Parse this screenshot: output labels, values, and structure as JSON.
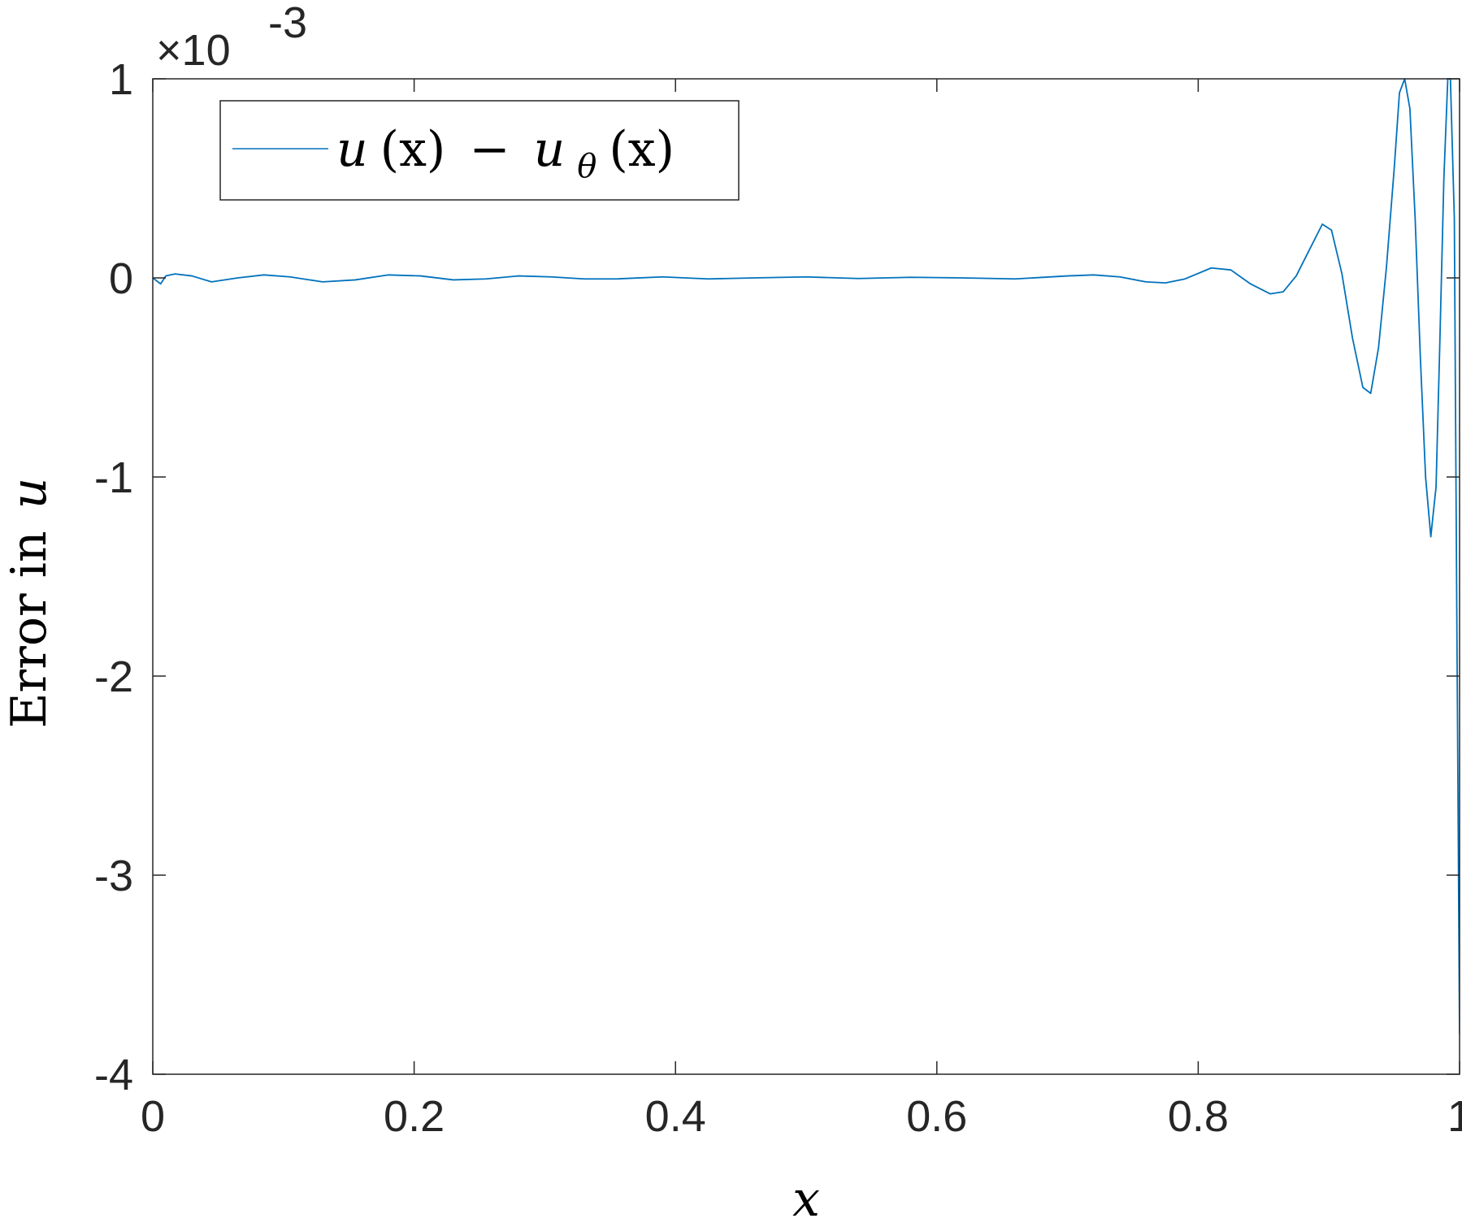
{
  "chart_data": {
    "type": "line",
    "title": "",
    "xlabel": "x",
    "ylabel": {
      "prefix": "Error in",
      "variable": "u"
    },
    "y_exponent": {
      "multiplier": "×10",
      "power": "-3"
    },
    "xlim": [
      0,
      1
    ],
    "ylim": [
      -4,
      1
    ],
    "xticks": [
      0,
      0.2,
      0.4,
      0.6,
      0.8,
      1
    ],
    "xtick_labels": [
      "0",
      "0.2",
      "0.4",
      "0.6",
      "0.8",
      "1"
    ],
    "yticks": [
      -4,
      -3,
      -2,
      -1,
      0,
      1
    ],
    "ytick_labels": [
      "-4",
      "-3",
      "-2",
      "-1",
      "0",
      "1"
    ],
    "grid": false,
    "legend_position": "top-left",
    "series": [
      {
        "name": "u(x) − u_θ(x)",
        "legend_parts": {
          "a": "u",
          "b": "(x)",
          "minus": "−",
          "c": "u",
          "sub": "θ",
          "d": "(x)"
        },
        "color": "#0072BD",
        "x": [
          0,
          0.006,
          0.01,
          0.017,
          0.03,
          0.045,
          0.065,
          0.085,
          0.105,
          0.13,
          0.155,
          0.18,
          0.205,
          0.23,
          0.255,
          0.28,
          0.305,
          0.33,
          0.355,
          0.39,
          0.425,
          0.46,
          0.5,
          0.54,
          0.58,
          0.62,
          0.66,
          0.7,
          0.72,
          0.74,
          0.76,
          0.775,
          0.79,
          0.81,
          0.825,
          0.84,
          0.855,
          0.865,
          0.875,
          0.885,
          0.895,
          0.902,
          0.91,
          0.918,
          0.926,
          0.932,
          0.938,
          0.944,
          0.95,
          0.954,
          0.958,
          0.962,
          0.966,
          0.97,
          0.974,
          0.978,
          0.982,
          0.985,
          0.988,
          0.991,
          0.993,
          0.996,
          0.998,
          1.0
        ],
        "y": [
          0.0,
          -0.03,
          0.01,
          0.02,
          0.01,
          -0.02,
          0.0,
          0.015,
          0.005,
          -0.02,
          -0.01,
          0.015,
          0.01,
          -0.01,
          -0.005,
          0.01,
          0.005,
          -0.005,
          -0.005,
          0.005,
          -0.005,
          0.0,
          0.005,
          -0.003,
          0.003,
          0.0,
          -0.005,
          0.01,
          0.015,
          0.005,
          -0.02,
          -0.025,
          -0.005,
          0.05,
          0.04,
          -0.03,
          -0.08,
          -0.07,
          0.01,
          0.14,
          0.27,
          0.24,
          0.02,
          -0.3,
          -0.55,
          -0.58,
          -0.35,
          0.05,
          0.55,
          0.93,
          1.0,
          0.85,
          0.3,
          -0.4,
          -1.0,
          -1.3,
          -1.05,
          -0.3,
          0.5,
          1.0,
          1.0,
          0.3,
          -1.8,
          -3.8
        ]
      }
    ]
  }
}
